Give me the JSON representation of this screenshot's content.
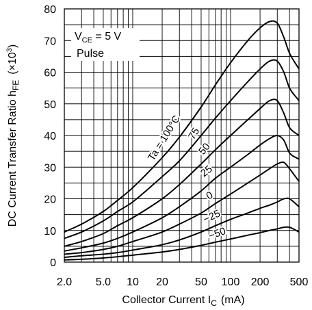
{
  "chart_data": {
    "type": "line",
    "x_scale": "log",
    "y_scale": "linear",
    "xlim": [
      2.0,
      500
    ],
    "ylim": [
      0,
      80
    ],
    "grid": true,
    "xlabel": {
      "main": "Collector Current  I",
      "sub": "C",
      "unit": "(mA)"
    },
    "ylabel": {
      "main": "DC Current Transfer Ratio h",
      "sub": "FE",
      "unit": "(×10",
      "sup": "3",
      "close": ")"
    },
    "x_tick_labels": [
      {
        "value": 2.0,
        "label": "2.0"
      },
      {
        "value": 5.0,
        "label": "5.0"
      },
      {
        "value": 10,
        "label": "10"
      },
      {
        "value": 20,
        "label": "20"
      },
      {
        "value": 50,
        "label": "50"
      },
      {
        "value": 100,
        "label": "100"
      },
      {
        "value": 200,
        "label": "200"
      },
      {
        "value": 500,
        "label": "500"
      }
    ],
    "y_tick_labels": [
      {
        "value": 0,
        "label": "0"
      },
      {
        "value": 10,
        "label": "10"
      },
      {
        "value": 20,
        "label": "20"
      },
      {
        "value": 30,
        "label": "30"
      },
      {
        "value": 40,
        "label": "40"
      },
      {
        "value": 50,
        "label": "50"
      },
      {
        "value": 60,
        "label": "60"
      },
      {
        "value": 70,
        "label": "70"
      },
      {
        "value": 80,
        "label": "80"
      }
    ],
    "conditions": [
      {
        "main": "V",
        "sub": "CE",
        "rest": " = 5 V"
      },
      {
        "main": "Pulse"
      }
    ],
    "series": [
      {
        "name": "Ta = 100°C",
        "x": [
          2,
          3,
          5,
          7,
          10,
          20,
          30,
          50,
          70,
          100,
          150,
          200,
          250,
          300,
          350,
          400,
          500
        ],
        "y": [
          9.5,
          12,
          16,
          19.5,
          23.5,
          33,
          39.5,
          49,
          56,
          63,
          70,
          74,
          76,
          75.5,
          71,
          66,
          61
        ]
      },
      {
        "name": "75",
        "x": [
          2,
          3,
          5,
          7,
          10,
          20,
          30,
          50,
          70,
          100,
          150,
          200,
          250,
          300,
          350,
          400,
          500
        ],
        "y": [
          7.5,
          9.5,
          13,
          16,
          19,
          27,
          32,
          40,
          45.5,
          51,
          57,
          61,
          63.5,
          63.5,
          60,
          55,
          51
        ]
      },
      {
        "name": "50",
        "x": [
          2,
          3,
          5,
          7,
          10,
          20,
          30,
          50,
          70,
          100,
          150,
          200,
          250,
          300,
          350,
          400,
          500
        ],
        "y": [
          5,
          6.5,
          9,
          11.5,
          14,
          20,
          24.5,
          31,
          35.5,
          40,
          45,
          48.5,
          51,
          51,
          47,
          42.5,
          40
        ]
      },
      {
        "name": "25",
        "x": [
          2,
          3,
          5,
          7,
          10,
          20,
          30,
          50,
          70,
          100,
          150,
          200,
          250,
          300,
          350,
          400,
          500
        ],
        "y": [
          3.5,
          4.5,
          6,
          7.5,
          9.5,
          14,
          17.5,
          22.5,
          26.5,
          30,
          34,
          37,
          39,
          40,
          38.5,
          34.5,
          32.5
        ]
      },
      {
        "name": "0",
        "x": [
          2,
          3,
          5,
          7,
          10,
          20,
          30,
          50,
          70,
          100,
          150,
          200,
          250,
          300,
          350,
          400,
          500
        ],
        "y": [
          2.5,
          3,
          4,
          5,
          6.5,
          9.5,
          12,
          15.5,
          18.5,
          21.5,
          25,
          27.5,
          29.5,
          31,
          31.5,
          29.5,
          25.5
        ]
      },
      {
        "name": "−25",
        "x": [
          2,
          3,
          5,
          7,
          10,
          20,
          30,
          50,
          70,
          100,
          150,
          200,
          250,
          300,
          350,
          400,
          500
        ],
        "y": [
          1.5,
          2,
          2.5,
          3,
          3.8,
          5.5,
          7,
          9.5,
          11.5,
          13.5,
          15.5,
          17,
          18,
          19,
          20,
          20,
          17.5
        ]
      },
      {
        "name": "−50",
        "x": [
          2,
          3,
          5,
          7,
          10,
          20,
          30,
          50,
          70,
          100,
          150,
          200,
          250,
          300,
          350,
          400,
          500
        ],
        "y": [
          0.7,
          0.9,
          1.3,
          1.7,
          2.2,
          3.2,
          4,
          5.3,
          6.3,
          7.3,
          8.5,
          9.3,
          10,
          10.5,
          11,
          11,
          9.5
        ]
      }
    ]
  }
}
